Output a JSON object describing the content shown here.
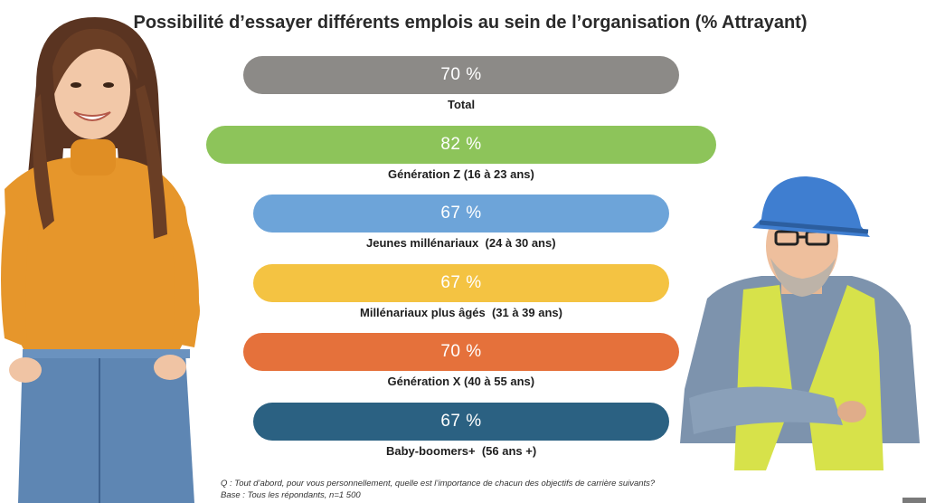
{
  "chart_data": {
    "type": "bar",
    "orientation": "horizontal",
    "title": "Possibilité d’essayer différents emplois au sein de l’organisation (% Attrayant)",
    "categories": [
      "Total",
      "Génération Z (16 à 23 ans)",
      "Jeunes millénariaux  (24 à 30 ans)",
      "Millénariaux plus âgés  (31 à 39 ans)",
      "Génération X (40 à 55 ans)",
      "Baby-boomers+  (56 ans +)"
    ],
    "values": [
      70,
      82,
      67,
      67,
      70,
      67
    ],
    "value_labels": [
      "70 %",
      "82 %",
      "67 %",
      "67 %",
      "70 %",
      "67 %"
    ],
    "colors": [
      "#8c8a87",
      "#8dc45a",
      "#6da4d9",
      "#f4c342",
      "#e5713b",
      "#2b6182"
    ],
    "footnote": "Q : Tout d’abord, pour vous personnellement, quelle est l’importance de chacun des objectifs de carrière suivants? Base : Tous les répondants, n=1 500"
  },
  "illustrations": {
    "left_person": "smiling young woman in orange turtleneck and jeans",
    "right_person": "worker in blue hard hat and yellow safety vest"
  }
}
